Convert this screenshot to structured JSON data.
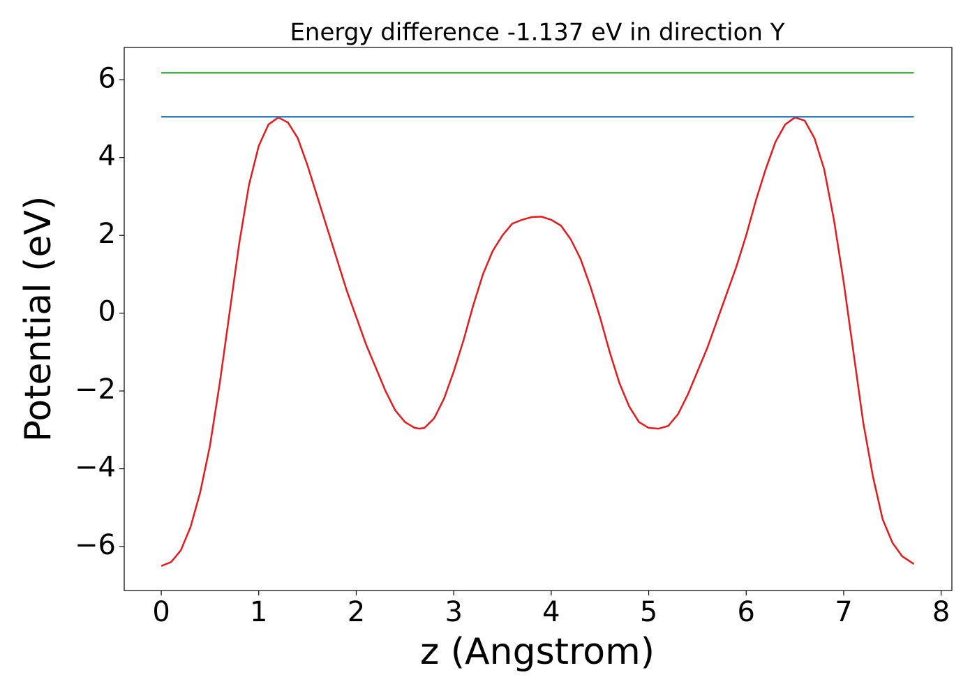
{
  "chart_data": {
    "type": "line",
    "title": "Energy difference -1.137 eV in direction Y",
    "x_label": "z (Angstrom)",
    "y_label": "Potential (eV)",
    "xlim": [
      -0.38,
      8.11
    ],
    "ylim": [
      -7.13,
      6.83
    ],
    "xticks": [
      0,
      1,
      2,
      3,
      4,
      5,
      6,
      7,
      8
    ],
    "yticks": [
      {
        "value": -6,
        "label": "−6"
      },
      {
        "value": -4,
        "label": "−4"
      },
      {
        "value": -2,
        "label": "−2"
      },
      0,
      2,
      4,
      6
    ],
    "grid": false,
    "series": [
      {
        "color": "#e41a1c",
        "x": [
          0,
          0.1,
          0.2,
          0.3,
          0.4,
          0.5,
          0.6,
          0.7,
          0.8,
          0.9,
          1.0,
          1.1,
          1.2,
          1.3,
          1.4,
          1.5,
          1.6,
          1.7,
          1.8,
          1.9,
          2.0,
          2.1,
          2.2,
          2.3,
          2.4,
          2.5,
          2.6,
          2.65,
          2.7,
          2.8,
          2.9,
          3.0,
          3.1,
          3.2,
          3.3,
          3.4,
          3.5,
          3.6,
          3.7,
          3.8,
          3.9,
          4.0,
          4.1,
          4.2,
          4.3,
          4.4,
          4.5,
          4.6,
          4.7,
          4.8,
          4.9,
          5.0,
          5.1,
          5.2,
          5.3,
          5.4,
          5.5,
          5.6,
          5.7,
          5.8,
          5.9,
          6.0,
          6.1,
          6.2,
          6.3,
          6.4,
          6.5,
          6.6,
          6.7,
          6.8,
          6.9,
          7.0,
          7.1,
          7.2,
          7.3,
          7.4,
          7.5,
          7.6,
          7.72
        ],
        "values": [
          -6.5,
          -6.4,
          -6.1,
          -5.5,
          -4.6,
          -3.4,
          -1.8,
          0.0,
          1.8,
          3.3,
          4.3,
          4.85,
          5.03,
          4.9,
          4.5,
          3.8,
          3.0,
          2.2,
          1.4,
          0.6,
          -0.1,
          -0.8,
          -1.4,
          -2.0,
          -2.5,
          -2.8,
          -2.95,
          -2.97,
          -2.95,
          -2.7,
          -2.2,
          -1.5,
          -0.7,
          0.2,
          1.0,
          1.6,
          2.0,
          2.3,
          2.4,
          2.47,
          2.48,
          2.4,
          2.25,
          1.9,
          1.4,
          0.7,
          -0.1,
          -1.0,
          -1.8,
          -2.4,
          -2.8,
          -2.95,
          -2.97,
          -2.9,
          -2.6,
          -2.1,
          -1.5,
          -0.9,
          -0.2,
          0.5,
          1.2,
          2.0,
          2.9,
          3.7,
          4.4,
          4.85,
          5.03,
          4.95,
          4.5,
          3.7,
          2.4,
          0.8,
          -1.0,
          -2.8,
          -4.2,
          -5.3,
          -5.9,
          -6.25,
          -6.45
        ]
      },
      {
        "color": "#377eb8",
        "x": [
          0,
          7.72
        ],
        "values": [
          5.05,
          5.05
        ]
      },
      {
        "color": "#4daf4a",
        "x": [
          0,
          7.72
        ],
        "values": [
          6.18,
          6.18
        ]
      }
    ]
  }
}
